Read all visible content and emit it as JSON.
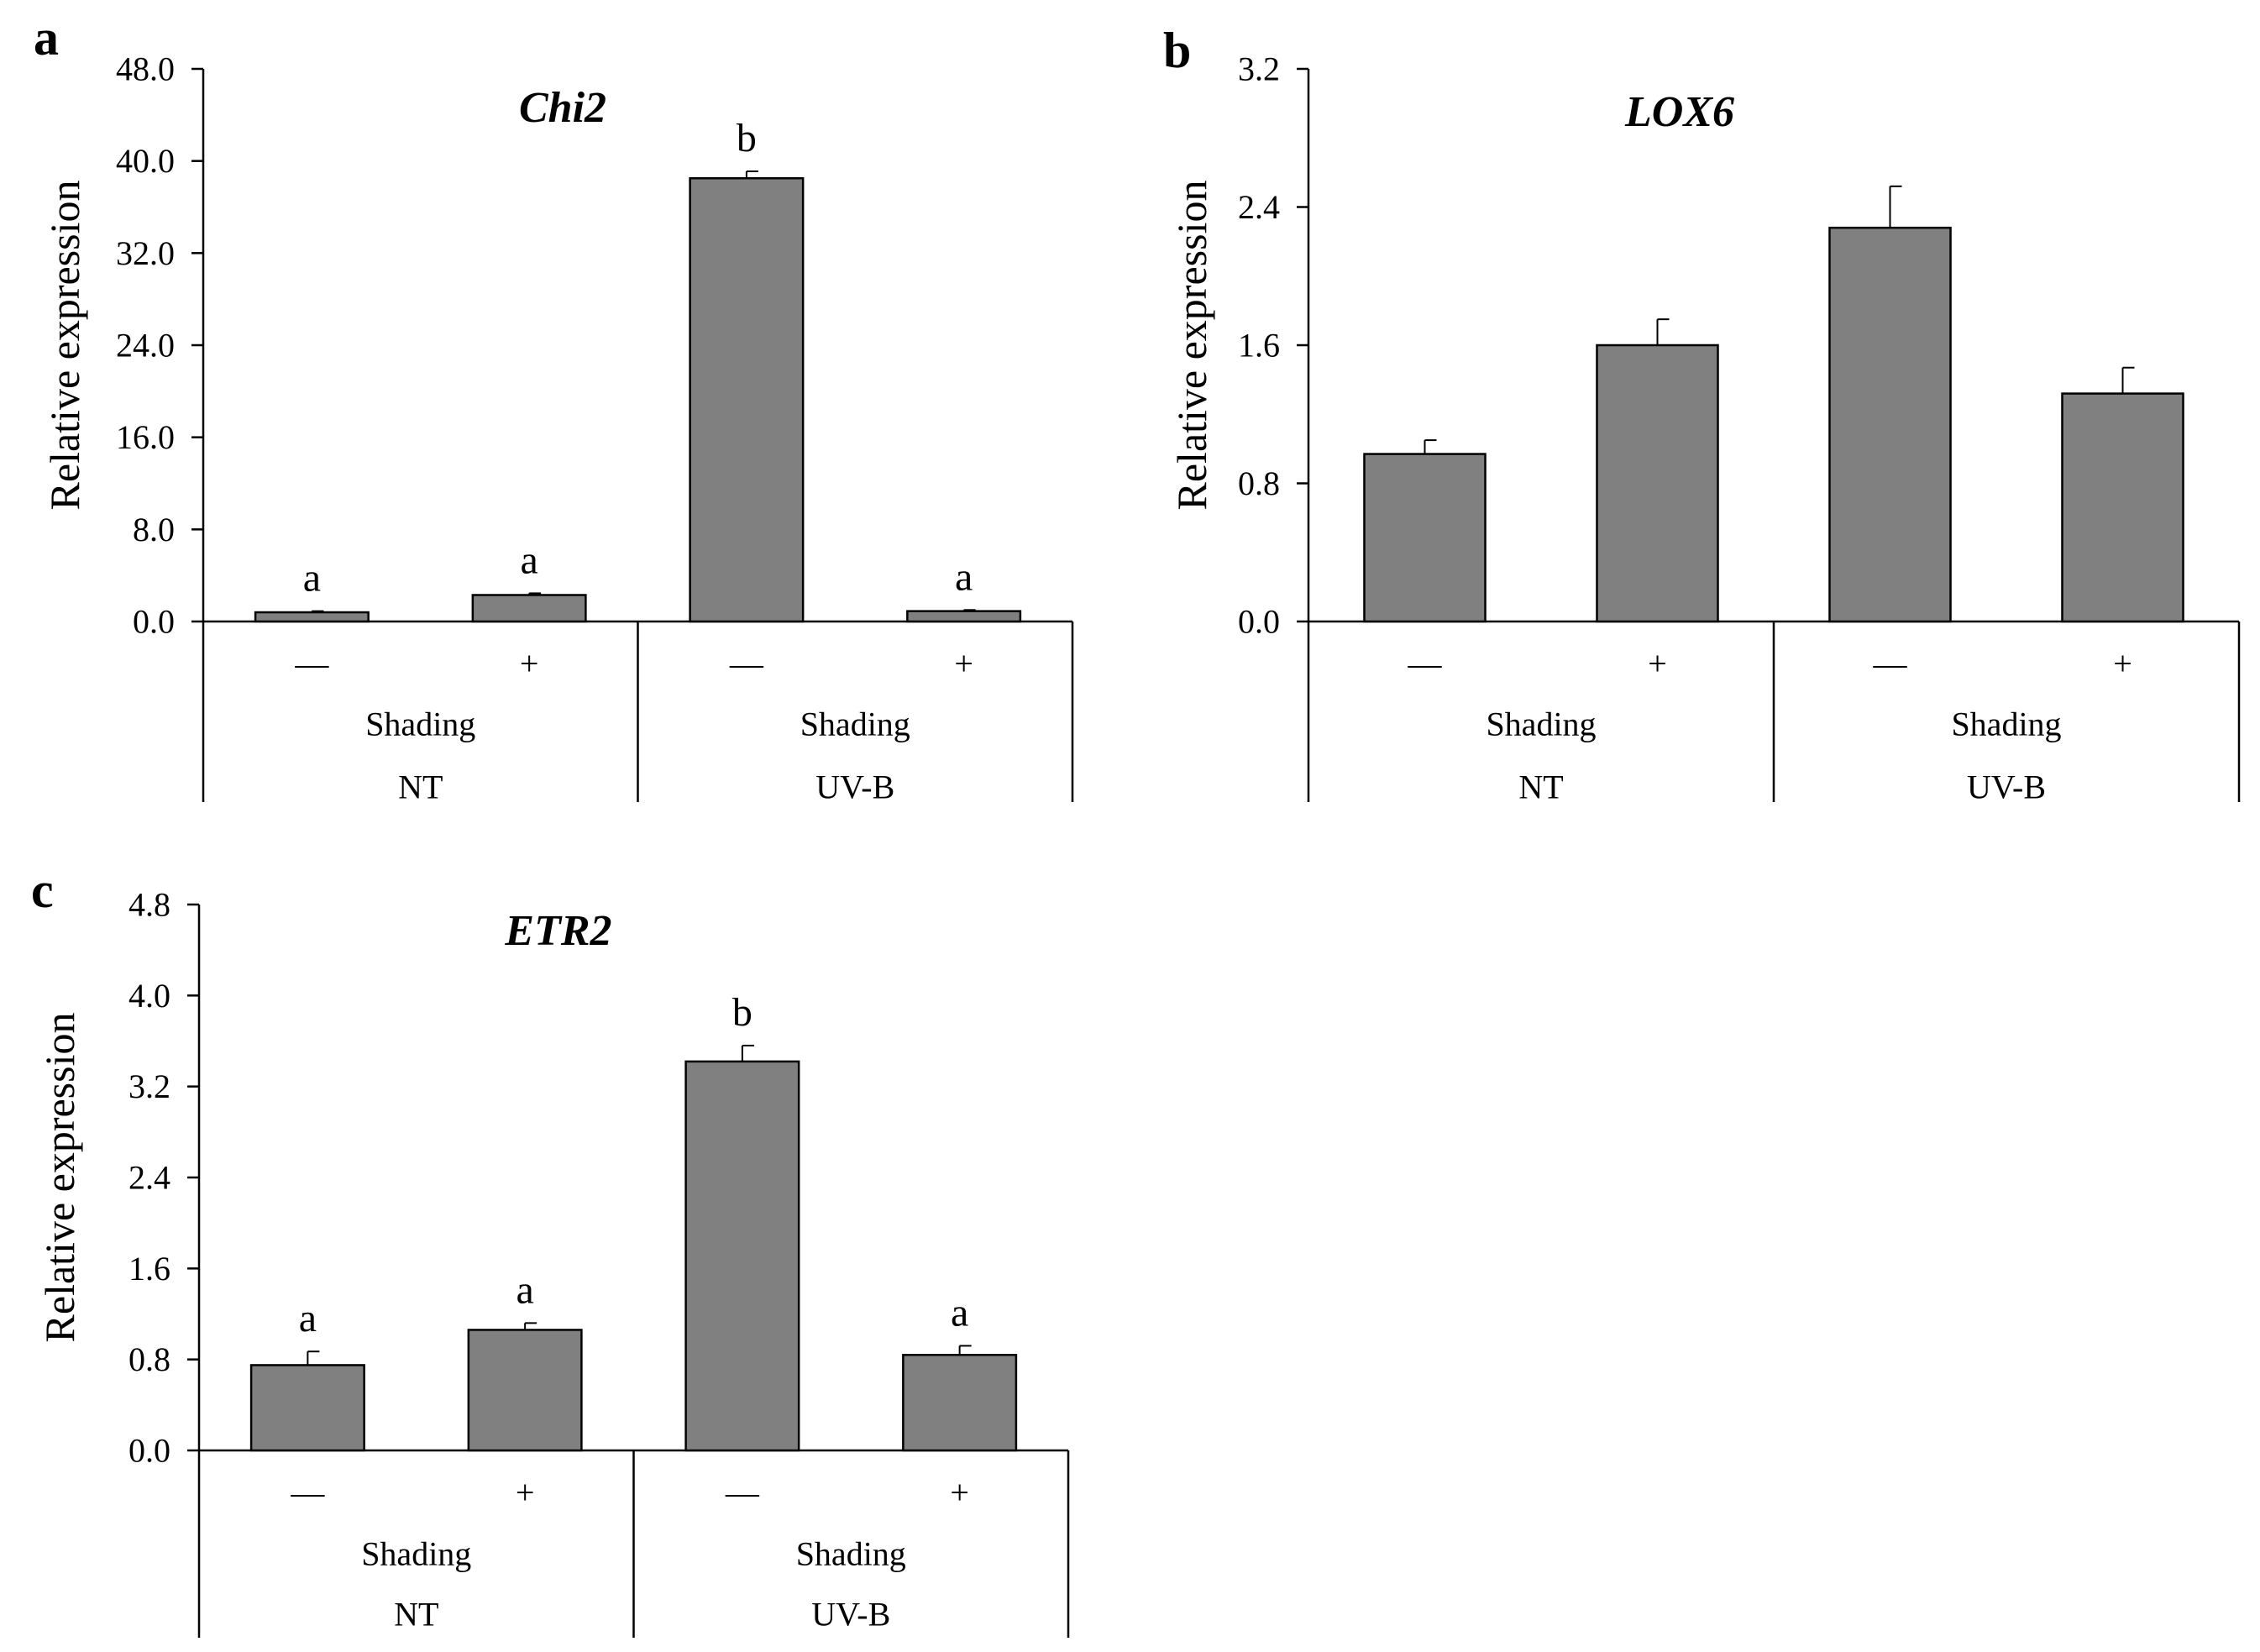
{
  "figure": {
    "background": "#ffffff",
    "bar_color": "#808080",
    "bar_edge_color": "#000000"
  },
  "chart_data": [
    {
      "panel": "a",
      "type": "bar",
      "title": "Chi2",
      "ylabel": "Relative expression",
      "xlabel": "",
      "ylim": [
        0,
        48
      ],
      "yticks": [
        "0.0",
        "8.0",
        "16.0",
        "24.0",
        "32.0",
        "40.0",
        "48.0"
      ],
      "categories": [
        "NT Shading −",
        "NT Shading +",
        "UV-B Shading −",
        "UV-B Shading +"
      ],
      "sign_labels": [
        "—",
        "+",
        "—",
        "+"
      ],
      "factor_label": "Shading",
      "groups": [
        "NT",
        "UV-B"
      ],
      "values": [
        0.8,
        2.3,
        38.5,
        0.9
      ],
      "errors": [
        0.1,
        0.15,
        0.6,
        0.1
      ],
      "significance": [
        "a",
        "a",
        "b",
        "a"
      ]
    },
    {
      "panel": "b",
      "type": "bar",
      "title": "LOX6",
      "ylabel": "Relative expression",
      "xlabel": "",
      "ylim": [
        0,
        3.2
      ],
      "yticks": [
        "0.0",
        "0.8",
        "1.6",
        "2.4",
        "3.2"
      ],
      "categories": [
        "NT Shading −",
        "NT Shading +",
        "UV-B Shading −",
        "UV-B Shading +"
      ],
      "sign_labels": [
        "—",
        "+",
        "—",
        "+"
      ],
      "factor_label": "Shading",
      "groups": [
        "NT",
        "UV-B"
      ],
      "values": [
        0.97,
        1.6,
        2.28,
        1.32
      ],
      "errors": [
        0.08,
        0.15,
        0.24,
        0.15
      ],
      "significance": []
    },
    {
      "panel": "c",
      "type": "bar",
      "title": "ETR2",
      "ylabel": "Relative expression",
      "xlabel": "",
      "ylim": [
        0,
        4.8
      ],
      "yticks": [
        "0.0",
        "0.8",
        "1.6",
        "2.4",
        "3.2",
        "4.0",
        "4.8"
      ],
      "categories": [
        "NT Shading −",
        "NT Shading +",
        "UV-B Shading −",
        "UV-B Shading +"
      ],
      "sign_labels": [
        "—",
        "+",
        "—",
        "+"
      ],
      "factor_label": "Shading",
      "groups": [
        "NT",
        "UV-B"
      ],
      "values": [
        0.75,
        1.06,
        3.42,
        0.84
      ],
      "errors": [
        0.12,
        0.06,
        0.14,
        0.08
      ],
      "significance": [
        "a",
        "a",
        "b",
        "a"
      ]
    }
  ]
}
